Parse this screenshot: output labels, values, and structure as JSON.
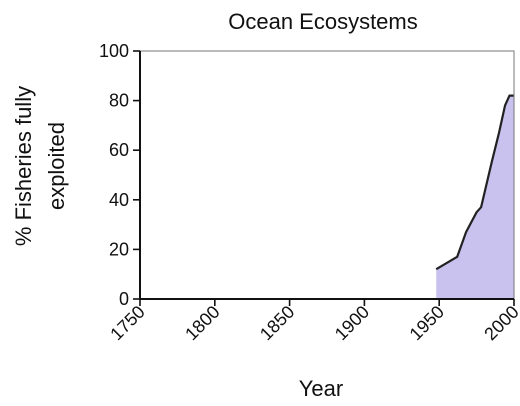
{
  "chart_data": {
    "type": "area",
    "title": "Ocean Ecosystems",
    "xlabel": "Year",
    "ylabel": "% Fisheries fully exploited",
    "ylabel_lines": [
      "% Fisheries fully",
      "exploited"
    ],
    "xlim": [
      1750,
      2000
    ],
    "ylim": [
      0,
      100
    ],
    "xticks": [
      1750,
      1800,
      1850,
      1900,
      1950,
      2000
    ],
    "yticks": [
      0,
      20,
      40,
      60,
      80,
      100
    ],
    "grid": false,
    "legend": "none",
    "series": [
      {
        "x": [
          1948,
          1962,
          1968,
          1975,
          1978,
          1985,
          1990,
          1994,
          1997,
          2000
        ],
        "y": [
          12,
          17,
          27,
          35,
          37,
          55,
          67,
          78,
          82,
          82
        ]
      }
    ],
    "fill_color": "#c9c2ee",
    "line_color": "#222222"
  }
}
